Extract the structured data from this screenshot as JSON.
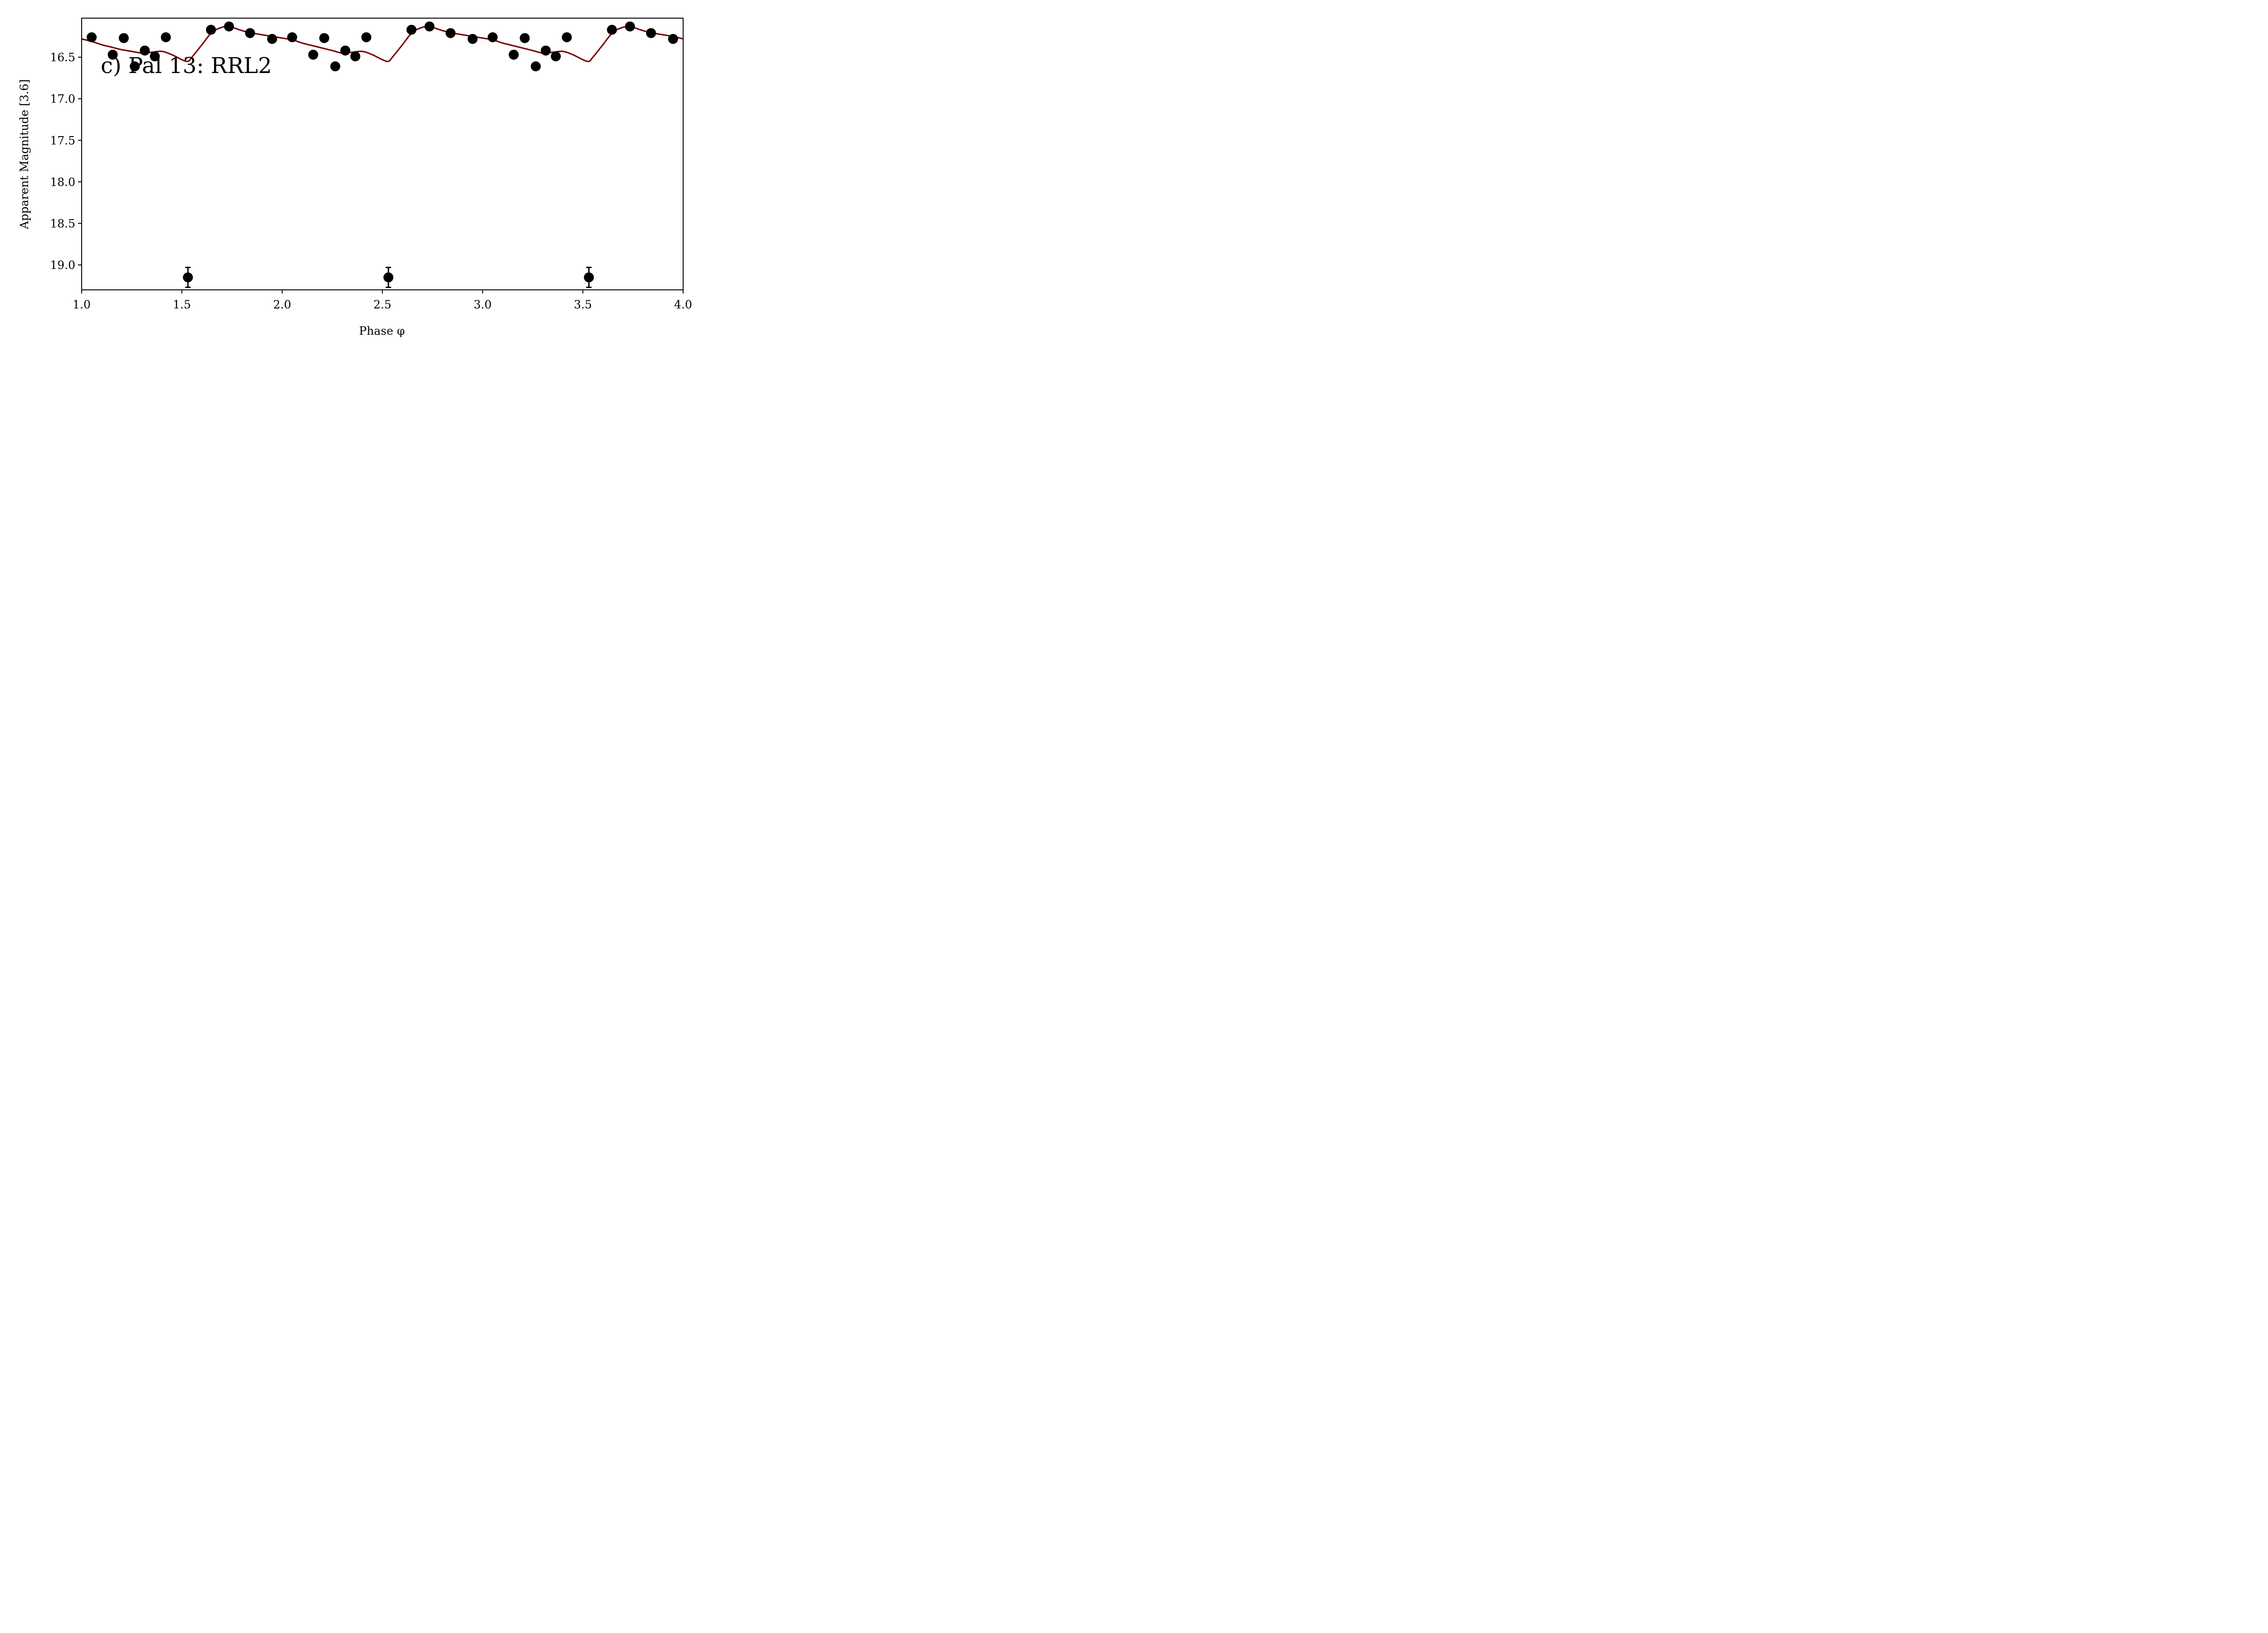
{
  "chart_data": {
    "type": "scatter",
    "panel_label": "c) Pal 13: RRL2",
    "xlabel": "Phase φ",
    "ylabel": "Apparent Magnitude [3.6]",
    "xlim": [
      1.0,
      4.0
    ],
    "ylim": [
      19.3,
      16.03
    ],
    "y_inverted": true,
    "grid": false,
    "x_ticks": [
      "1.0",
      "1.5",
      "2.0",
      "2.5",
      "3.0",
      "3.5",
      "4.0"
    ],
    "y_ticks": [
      "16.5",
      "17.0",
      "17.5",
      "18.0",
      "18.5",
      "19.0"
    ],
    "colors": {
      "points": "#000000",
      "fit": "#7b0000"
    },
    "observations": {
      "x": [
        1.05,
        1.155,
        1.21,
        1.265,
        1.315,
        1.365,
        1.42,
        1.645,
        1.735,
        1.84,
        1.95,
        2.05,
        2.155,
        2.21,
        2.265,
        2.315,
        2.365,
        2.42,
        2.645,
        2.735,
        2.84,
        2.95,
        3.05,
        3.155,
        3.21,
        3.265,
        3.315,
        3.365,
        3.42,
        3.645,
        3.735,
        3.84,
        3.95
      ],
      "y": [
        16.26,
        16.47,
        16.27,
        16.61,
        16.42,
        16.49,
        16.26,
        16.17,
        16.13,
        16.21,
        16.28,
        16.26,
        16.47,
        16.27,
        16.61,
        16.42,
        16.49,
        16.26,
        16.17,
        16.13,
        16.21,
        16.28,
        16.26,
        16.47,
        16.27,
        16.61,
        16.42,
        16.49,
        16.26,
        16.17,
        16.13,
        16.21,
        16.28
      ]
    },
    "fit_curve": {
      "x": [
        1.0,
        1.05,
        1.1,
        1.15,
        1.2,
        1.25,
        1.3,
        1.35,
        1.4,
        1.45,
        1.5,
        1.53,
        1.55,
        1.6,
        1.65,
        1.7,
        1.73,
        1.75,
        1.8,
        1.85,
        1.9,
        1.95,
        2.0,
        2.05,
        2.1,
        2.15,
        2.2,
        2.25,
        2.3,
        2.35,
        2.4,
        2.45,
        2.5,
        2.53,
        2.55,
        2.6,
        2.65,
        2.7,
        2.73,
        2.75,
        2.8,
        2.85,
        2.9,
        2.95,
        3.0,
        3.05,
        3.1,
        3.15,
        3.2,
        3.25,
        3.3,
        3.35,
        3.4,
        3.45,
        3.5,
        3.53,
        3.55,
        3.6,
        3.65,
        3.7,
        3.73,
        3.75,
        3.8,
        3.85,
        3.9,
        3.95,
        4.0
      ],
      "y": [
        16.28,
        16.31,
        16.35,
        16.38,
        16.41,
        16.43,
        16.45,
        16.44,
        16.43,
        16.47,
        16.53,
        16.55,
        16.5,
        16.35,
        16.2,
        16.14,
        16.13,
        16.14,
        16.18,
        16.21,
        16.23,
        16.25,
        16.27,
        16.29,
        16.33,
        16.36,
        16.39,
        16.42,
        16.45,
        16.44,
        16.43,
        16.47,
        16.53,
        16.55,
        16.5,
        16.35,
        16.2,
        16.14,
        16.13,
        16.14,
        16.18,
        16.21,
        16.23,
        16.25,
        16.27,
        16.29,
        16.33,
        16.36,
        16.39,
        16.42,
        16.45,
        16.44,
        16.43,
        16.47,
        16.53,
        16.55,
        16.5,
        16.35,
        16.2,
        16.14,
        16.13,
        16.14,
        16.18,
        16.21,
        16.23,
        16.25,
        16.28
      ]
    },
    "error_points": {
      "x": [
        1.53,
        2.53,
        3.53
      ],
      "y": [
        19.15,
        19.15,
        19.15
      ],
      "yerr": [
        0.12,
        0.12,
        0.12
      ]
    }
  }
}
